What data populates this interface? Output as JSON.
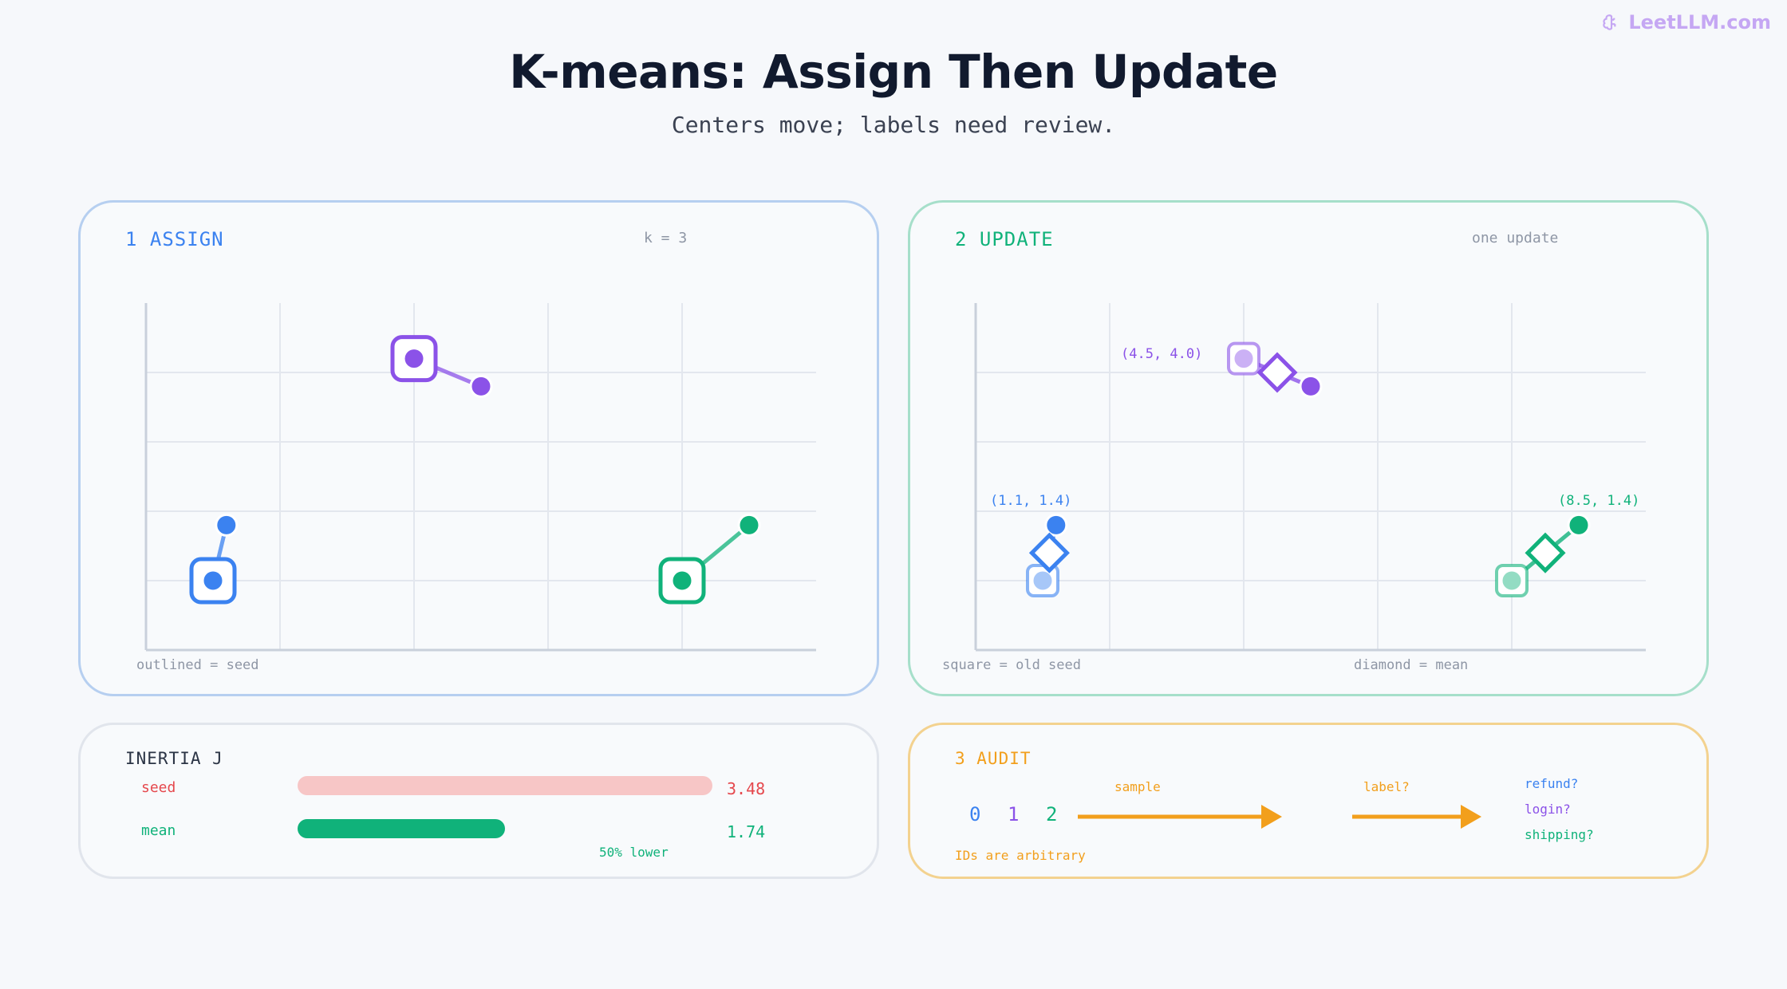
{
  "brand": {
    "text": "LeetLLM.com",
    "icon": "brain-icon",
    "color": "#c5a7f3"
  },
  "title": "K-means: Assign Then Update",
  "subtitle": "Centers move; labels need review.",
  "colors": {
    "blue": "#3b82f0",
    "purple": "#8b52e8",
    "green": "#10b27a",
    "red": "#e5484d",
    "orange": "#f29f1c"
  },
  "assign": {
    "title": "1 ASSIGN",
    "note": "k = 3",
    "caption": "outlined = seed"
  },
  "update": {
    "title": "2 UPDATE",
    "note": "one update",
    "caption_left": "square = old seed",
    "caption_right": "diamond = mean",
    "labels": {
      "purple": "(4.5, 4.0)",
      "blue": "(1.1, 1.4)",
      "green": "(8.5, 1.4)"
    }
  },
  "chart_data": {
    "type": "scatter",
    "xlim": [
      0,
      10
    ],
    "ylim": [
      0,
      5
    ],
    "grid": true,
    "clusters": [
      {
        "name": "blue",
        "seed": [
          1,
          1
        ],
        "points": [
          [
            1,
            1
          ],
          [
            1.2,
            1.8
          ]
        ],
        "mean": [
          1.1,
          1.4
        ]
      },
      {
        "name": "purple",
        "seed": [
          4,
          4.2
        ],
        "points": [
          [
            4,
            4.2
          ],
          [
            5,
            3.8
          ]
        ],
        "mean": [
          4.5,
          4.0
        ]
      },
      {
        "name": "green",
        "seed": [
          8,
          1
        ],
        "points": [
          [
            8,
            1
          ],
          [
            9,
            1.8
          ]
        ],
        "mean": [
          8.5,
          1.4
        ]
      }
    ]
  },
  "inertia": {
    "title": "INERTIA J",
    "rows": [
      {
        "label": "seed",
        "value": "3.48",
        "num": 3.48
      },
      {
        "label": "mean",
        "value": "1.74",
        "num": 1.74
      }
    ],
    "max": 3.48,
    "note": "50% lower"
  },
  "audit": {
    "title": "3 AUDIT",
    "ids": [
      "0",
      "1",
      "2"
    ],
    "step1": "sample",
    "step2": "label?",
    "labels": [
      "refund?",
      "login?",
      "shipping?"
    ],
    "note": "IDs are arbitrary"
  }
}
